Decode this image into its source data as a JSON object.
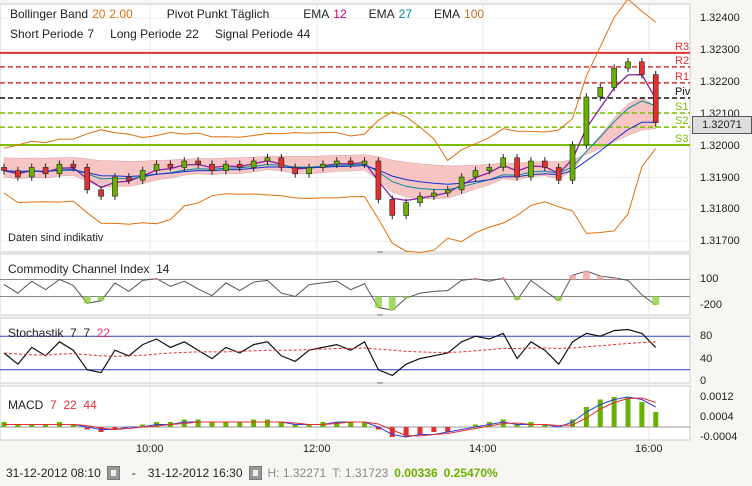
{
  "header": {
    "row1": [
      {
        "text": "Bollinger Band",
        "color": "#222"
      },
      {
        "text": "20",
        "color": "#e07010"
      },
      {
        "text": "2.00",
        "color": "#e07010"
      },
      {
        "text": "Pivot Punkt  Täglich",
        "color": "#222"
      },
      {
        "text": "EMA",
        "color": "#222"
      },
      {
        "text": "12",
        "color": "#c0007a"
      },
      {
        "text": "EMA",
        "color": "#222"
      },
      {
        "text": "27",
        "color": "#008a9a"
      },
      {
        "text": "EMA",
        "color": "#222"
      },
      {
        "text": "100",
        "color": "#c07020"
      }
    ],
    "row2": [
      {
        "text": "Short Periode",
        "color": "#222"
      },
      {
        "text": "7",
        "color": "#222"
      },
      {
        "text": "Long Periode",
        "color": "#222"
      },
      {
        "text": "22",
        "color": "#222"
      },
      {
        "text": "Signal Periode",
        "color": "#222"
      },
      {
        "text": "44",
        "color": "#222"
      }
    ]
  },
  "disclaimer": "Daten sind indikativ",
  "current_price": "1.32071",
  "price_axis": [
    "1.32400",
    "1.32300",
    "1.32200",
    "1.32100",
    "1.32000",
    "1.31900",
    "1.31800",
    "1.31700"
  ],
  "pivots": [
    {
      "label": "R3",
      "value": 1.32288,
      "color": "#e03030",
      "style": "solid"
    },
    {
      "label": "R2",
      "value": 1.32244,
      "color": "#e03030",
      "style": "dashed"
    },
    {
      "label": "R1",
      "value": 1.32194,
      "color": "#e03030",
      "style": "dashed"
    },
    {
      "label": "Piv",
      "value": 1.32147,
      "color": "#111111",
      "style": "dashed"
    },
    {
      "label": "S1",
      "value": 1.321,
      "color": "#7ac000",
      "style": "dashed"
    },
    {
      "label": "S2",
      "value": 1.32056,
      "color": "#7ac000",
      "style": "dashed"
    },
    {
      "label": "S3",
      "value": 1.32,
      "color": "#7ac000",
      "style": "solid"
    }
  ],
  "panels": {
    "cci": {
      "title": "Commodity Channel Index",
      "param": "14",
      "ticks": [
        "100",
        "-200"
      ]
    },
    "stoch": {
      "title": "Stochastik",
      "params": [
        "7",
        "7",
        "22"
      ],
      "ticks": [
        "80",
        "40",
        "0"
      ]
    },
    "macd": {
      "title": "MACD",
      "params": [
        "7",
        "22",
        "44"
      ],
      "ticks": [
        "0.0012",
        "0.0004",
        "-0.0004"
      ]
    }
  },
  "time_axis": [
    "10:00",
    "12:00",
    "14:00",
    "16:00"
  ],
  "footer": {
    "from": "31-12-2012 08:10",
    "sep": "-",
    "to": "31-12-2012 16:30",
    "high": "H: 1.32271",
    "low": "T: 1.31723",
    "change": "0.00336",
    "change_pct": "0.25470%"
  },
  "chart_data": {
    "type": "candlestick",
    "times": [
      "08:10",
      "08:20",
      "08:30",
      "08:40",
      "08:50",
      "09:00",
      "09:10",
      "09:20",
      "09:30",
      "09:40",
      "09:50",
      "10:00",
      "10:10",
      "10:20",
      "10:30",
      "10:40",
      "10:50",
      "11:00",
      "11:10",
      "11:20",
      "11:30",
      "11:40",
      "11:50",
      "12:00",
      "12:10",
      "12:20",
      "12:30",
      "12:40",
      "12:50",
      "13:00",
      "13:10",
      "13:20",
      "13:30",
      "13:40",
      "13:50",
      "14:00",
      "14:10",
      "14:20",
      "14:30",
      "14:40",
      "14:50",
      "15:00",
      "15:10",
      "15:20",
      "15:30",
      "15:40",
      "15:50",
      "16:00"
    ],
    "close": [
      1.3192,
      1.319,
      1.3193,
      1.3191,
      1.3194,
      1.3193,
      1.3186,
      1.3184,
      1.319,
      1.3189,
      1.3192,
      1.3194,
      1.3193,
      1.3195,
      1.3194,
      1.3192,
      1.3194,
      1.3193,
      1.3195,
      1.3196,
      1.3193,
      1.3191,
      1.3193,
      1.3194,
      1.3195,
      1.3194,
      1.3195,
      1.3183,
      1.3178,
      1.3182,
      1.3184,
      1.3185,
      1.3186,
      1.319,
      1.3192,
      1.3193,
      1.3196,
      1.319,
      1.3195,
      1.3193,
      1.3189,
      1.32,
      1.3215,
      1.3218,
      1.3224,
      1.3226,
      1.3222,
      1.3207
    ],
    "ylim": [
      1.317,
      1.3243
    ],
    "cci": [
      40,
      -60,
      80,
      -20,
      100,
      30,
      -180,
      -150,
      60,
      -40,
      90,
      110,
      20,
      80,
      -10,
      -90,
      60,
      -30,
      70,
      90,
      -60,
      -100,
      40,
      60,
      80,
      -20,
      50,
      -230,
      -260,
      -120,
      -60,
      -40,
      -30,
      90,
      110,
      80,
      120,
      -140,
      90,
      -30,
      -150,
      150,
      200,
      140,
      120,
      90,
      -80,
      -200
    ],
    "stoch_k": [
      50,
      30,
      60,
      45,
      70,
      55,
      20,
      15,
      55,
      45,
      65,
      75,
      60,
      70,
      55,
      40,
      60,
      50,
      65,
      70,
      45,
      35,
      55,
      60,
      65,
      55,
      70,
      20,
      10,
      30,
      40,
      45,
      50,
      70,
      80,
      75,
      85,
      40,
      70,
      55,
      30,
      70,
      85,
      80,
      90,
      92,
      85,
      60
    ],
    "stoch_d": [
      50,
      48,
      47,
      46,
      48,
      49,
      47,
      45,
      44,
      45,
      46,
      48,
      50,
      51,
      52,
      52,
      52,
      53,
      54,
      55,
      55,
      55,
      56,
      57,
      58,
      58,
      59,
      57,
      55,
      53,
      52,
      51,
      51,
      52,
      54,
      56,
      58,
      58,
      59,
      59,
      58,
      59,
      61,
      63,
      65,
      67,
      69,
      70
    ],
    "macd_hist": [
      0.0002,
      0.0001,
      0.0001,
      0.0001,
      0.0002,
      0.0001,
      -0.0001,
      -0.0002,
      -0.0001,
      0,
      0.0001,
      0.0002,
      0.0002,
      0.0003,
      0.0003,
      0.0002,
      0.0002,
      0.0002,
      0.0003,
      0.0003,
      0.0002,
      0.0001,
      0.0001,
      0.0002,
      0.0002,
      0.0002,
      0.0002,
      -0.0001,
      -0.0004,
      -0.0004,
      -0.0003,
      -0.0002,
      -0.0002,
      0,
      0.0001,
      0.0002,
      0.0003,
      0.0001,
      0.0002,
      0.0001,
      0,
      0.0003,
      0.0008,
      0.0011,
      0.0012,
      0.0012,
      0.001,
      0.0006
    ],
    "macd_line": [
      0.0001,
      0.0001,
      0.0001,
      0.0001,
      0.0001,
      0.0001,
      0,
      -0.0001,
      -0.0001,
      0,
      0,
      0.0001,
      0.0001,
      0.0002,
      0.0002,
      0.0002,
      0.0002,
      0.0002,
      0.0002,
      0.0002,
      0.0002,
      0.0001,
      0.0001,
      0.0001,
      0.0002,
      0.0002,
      0.0002,
      0,
      -0.0003,
      -0.0004,
      -0.0003,
      -0.0003,
      -0.0002,
      -0.0001,
      0,
      0.0001,
      0.0002,
      0.0001,
      0.0001,
      0.0001,
      0,
      0.0002,
      0.0006,
      0.0009,
      0.0011,
      0.0012,
      0.0011,
      0.0008
    ],
    "colors": {
      "up": "#6ab000",
      "down": "#e03030",
      "bollinger": "#e07010",
      "ema12": "#8a1fa0",
      "ema27": "#008a9a",
      "ema100": "#1030d0"
    }
  }
}
